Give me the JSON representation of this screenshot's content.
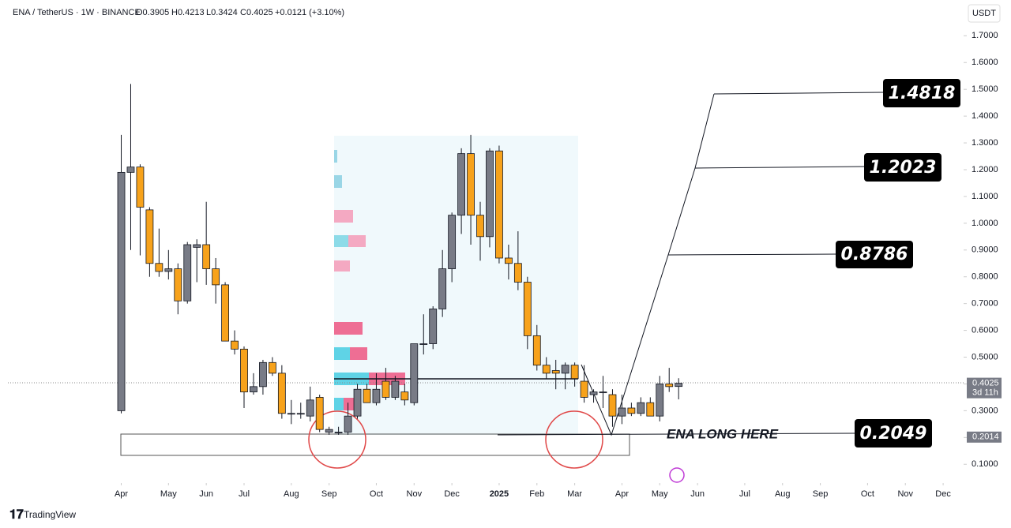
{
  "chart_data": {
    "type": "candlestick",
    "title": "ENA / TetherUS · 1W · BINANCE",
    "ohlc_labels": [
      "O0.3905",
      "H0.4213",
      "L0.3424",
      "C0.4025"
    ],
    "change_label": "+0.0121 (+3.10%)",
    "currency": "USDT",
    "brand": "TradingView",
    "last_price": {
      "value": 0.4025,
      "label": "0.4025"
    },
    "countdown": "3d 11h",
    "alert_price": {
      "value": 0.2014,
      "label": "0.2014"
    },
    "annotations": [
      "1.4818",
      "1.2023",
      "0.8786",
      "0.2049",
      "ENA LONG HERE"
    ],
    "up_color": "#787b86",
    "down_color": "#f7a21b",
    "x": [
      0,
      1,
      2,
      3,
      4,
      5,
      6,
      7,
      8,
      9,
      10,
      11,
      12,
      13,
      14,
      15,
      16,
      17,
      18,
      19,
      20,
      21,
      22,
      23,
      24,
      25,
      26,
      27,
      28,
      29,
      30,
      31,
      32,
      33,
      34,
      35,
      36,
      37,
      38,
      39,
      40,
      41,
      42,
      43,
      44,
      45,
      46,
      47,
      48,
      49,
      50,
      51,
      52,
      53,
      54,
      55,
      56,
      57,
      58,
      59
    ],
    "open": [
      0.3,
      1.19,
      1.21,
      1.05,
      0.85,
      0.82,
      0.83,
      0.71,
      0.91,
      0.92,
      0.83,
      0.77,
      0.56,
      0.53,
      0.37,
      0.39,
      0.48,
      0.44,
      0.29,
      0.29,
      0.28,
      0.35,
      0.22,
      0.22,
      0.22,
      0.28,
      0.38,
      0.33,
      0.41,
      0.35,
      0.37,
      0.33,
      0.55,
      0.55,
      0.68,
      0.83,
      1.03,
      1.26,
      1.03,
      0.95,
      1.27,
      0.87,
      0.85,
      0.78,
      0.58,
      0.47,
      0.45,
      0.44,
      0.47,
      0.41,
      0.36,
      0.37,
      0.36,
      0.28,
      0.31,
      0.29,
      0.33,
      0.28,
      0.4,
      0.3905
    ],
    "high": [
      1.33,
      1.52,
      1.22,
      1.06,
      0.98,
      0.9,
      0.85,
      0.93,
      0.94,
      1.08,
      0.87,
      0.78,
      0.6,
      0.54,
      0.44,
      0.49,
      0.5,
      0.47,
      0.34,
      0.33,
      0.39,
      0.36,
      0.24,
      0.24,
      0.33,
      0.4,
      0.4,
      0.44,
      0.46,
      0.43,
      0.4,
      0.55,
      0.66,
      0.69,
      0.9,
      1.04,
      1.28,
      1.33,
      1.08,
      1.28,
      1.29,
      0.92,
      0.97,
      0.8,
      0.62,
      0.5,
      0.49,
      0.48,
      0.48,
      0.47,
      0.38,
      0.43,
      0.38,
      0.36,
      0.33,
      0.35,
      0.35,
      0.43,
      0.46,
      0.4213
    ],
    "low": [
      0.29,
      0.9,
      0.88,
      0.8,
      0.8,
      0.79,
      0.66,
      0.7,
      0.78,
      0.77,
      0.7,
      0.57,
      0.51,
      0.31,
      0.36,
      0.36,
      0.43,
      0.27,
      0.25,
      0.27,
      0.26,
      0.22,
      0.21,
      0.21,
      0.21,
      0.27,
      0.33,
      0.32,
      0.34,
      0.34,
      0.32,
      0.32,
      0.51,
      0.53,
      0.65,
      0.78,
      0.96,
      0.92,
      0.86,
      0.91,
      0.85,
      0.79,
      0.75,
      0.53,
      0.45,
      0.42,
      0.38,
      0.38,
      0.39,
      0.33,
      0.33,
      0.31,
      0.24,
      0.25,
      0.28,
      0.28,
      0.28,
      0.26,
      0.37,
      0.3424
    ],
    "close": [
      1.19,
      1.21,
      1.06,
      0.85,
      0.82,
      0.83,
      0.71,
      0.92,
      0.92,
      0.83,
      0.77,
      0.56,
      0.53,
      0.37,
      0.39,
      0.48,
      0.44,
      0.29,
      0.29,
      0.29,
      0.34,
      0.23,
      0.23,
      0.22,
      0.28,
      0.38,
      0.33,
      0.38,
      0.35,
      0.41,
      0.34,
      0.55,
      0.55,
      0.68,
      0.83,
      1.03,
      1.26,
      1.03,
      0.95,
      1.27,
      0.87,
      0.85,
      0.78,
      0.58,
      0.47,
      0.44,
      0.44,
      0.47,
      0.42,
      0.35,
      0.37,
      0.37,
      0.28,
      0.31,
      0.29,
      0.33,
      0.28,
      0.4,
      0.39,
      0.4025
    ],
    "xlim": [
      -12,
      89
    ],
    "xticks": [
      {
        "value": 0,
        "label": "Apr"
      },
      {
        "value": 5,
        "label": "May"
      },
      {
        "value": 9,
        "label": "Jun"
      },
      {
        "value": 13,
        "label": "Jul"
      },
      {
        "value": 18,
        "label": "Aug"
      },
      {
        "value": 22,
        "label": "Sep"
      },
      {
        "value": 27,
        "label": "Oct"
      },
      {
        "value": 31,
        "label": "Nov"
      },
      {
        "value": 35,
        "label": "Dec"
      },
      {
        "value": 40,
        "label": "2025"
      },
      {
        "value": 44,
        "label": "Feb"
      },
      {
        "value": 48,
        "label": "Mar"
      },
      {
        "value": 53,
        "label": "Apr"
      },
      {
        "value": 57,
        "label": "May"
      },
      {
        "value": 61,
        "label": "Jun"
      },
      {
        "value": 66,
        "label": "Jul"
      },
      {
        "value": 70,
        "label": "Aug"
      },
      {
        "value": 74,
        "label": "Sep"
      },
      {
        "value": 79,
        "label": "Oct"
      },
      {
        "value": 83,
        "label": "Nov"
      },
      {
        "value": 87,
        "label": "Dec"
      }
    ],
    "ylim": [
      0.03,
      1.81
    ],
    "yticks": [
      {
        "value": 0.1,
        "label": "0.1000"
      },
      {
        "value": 0.2,
        "label": "0.2000"
      },
      {
        "value": 0.3,
        "label": "0.3000"
      },
      {
        "value": 0.4,
        "label": "0.4000"
      },
      {
        "value": 0.5,
        "label": "0.5000"
      },
      {
        "value": 0.6,
        "label": "0.6000"
      },
      {
        "value": 0.7,
        "label": "0.7000"
      },
      {
        "value": 0.8,
        "label": "0.8000"
      },
      {
        "value": 0.9,
        "label": "0.9000"
      },
      {
        "value": 1,
        "label": "1.0000"
      },
      {
        "value": 1.1,
        "label": "1.1000"
      },
      {
        "value": 1.2,
        "label": "1.2000"
      },
      {
        "value": 1.3,
        "label": "1.3000"
      },
      {
        "value": 1.4,
        "label": "1.4000"
      },
      {
        "value": 1.5,
        "label": "1.5000"
      },
      {
        "value": 1.6,
        "label": "1.6000"
      },
      {
        "value": 1.7,
        "label": "1.7000"
      }
    ]
  }
}
